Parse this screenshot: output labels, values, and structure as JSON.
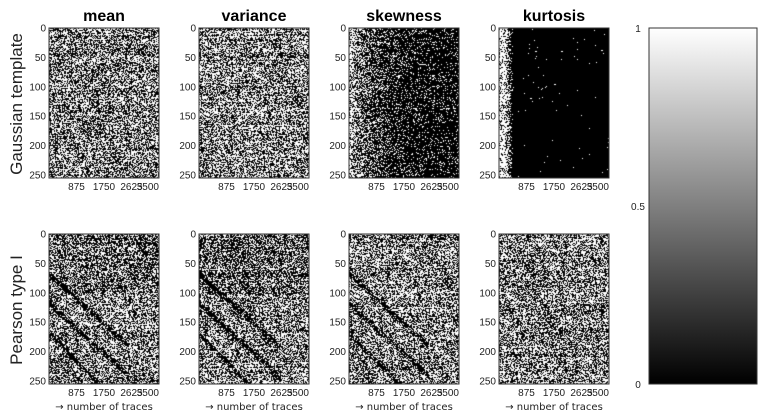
{
  "chart_data": {
    "type": "heatmap",
    "columns": [
      "mean",
      "variance",
      "skewness",
      "kurtosis"
    ],
    "rows": [
      "Gaussian template",
      "Pearson type I"
    ],
    "x_ticks": [
      "875",
      "1750",
      "2625",
      "3500"
    ],
    "y_ticks": [
      "0",
      "50",
      "100",
      "150",
      "200",
      "250"
    ],
    "xlim": [
      0,
      3500
    ],
    "ylim": [
      0,
      255
    ],
    "xlabel": "→ number of traces",
    "colorbar": {
      "min": 0,
      "max": 1,
      "ticks": [
        "0",
        "0.5",
        "1"
      ],
      "colormap": "gray"
    },
    "panels": [
      [
        {
          "pattern": "noise",
          "density": 0.5
        },
        {
          "pattern": "noise",
          "density": 0.5
        },
        {
          "pattern": "mostly-black-right",
          "density": 0.3
        },
        {
          "pattern": "black-after-edge",
          "density": 0.05
        }
      ],
      [
        {
          "pattern": "noise-with-diagonals",
          "density": 0.5
        },
        {
          "pattern": "noise-with-diagonals",
          "density": 0.5
        },
        {
          "pattern": "noise-with-diagonals",
          "density": 0.5
        },
        {
          "pattern": "noise",
          "density": 0.5
        }
      ]
    ]
  }
}
